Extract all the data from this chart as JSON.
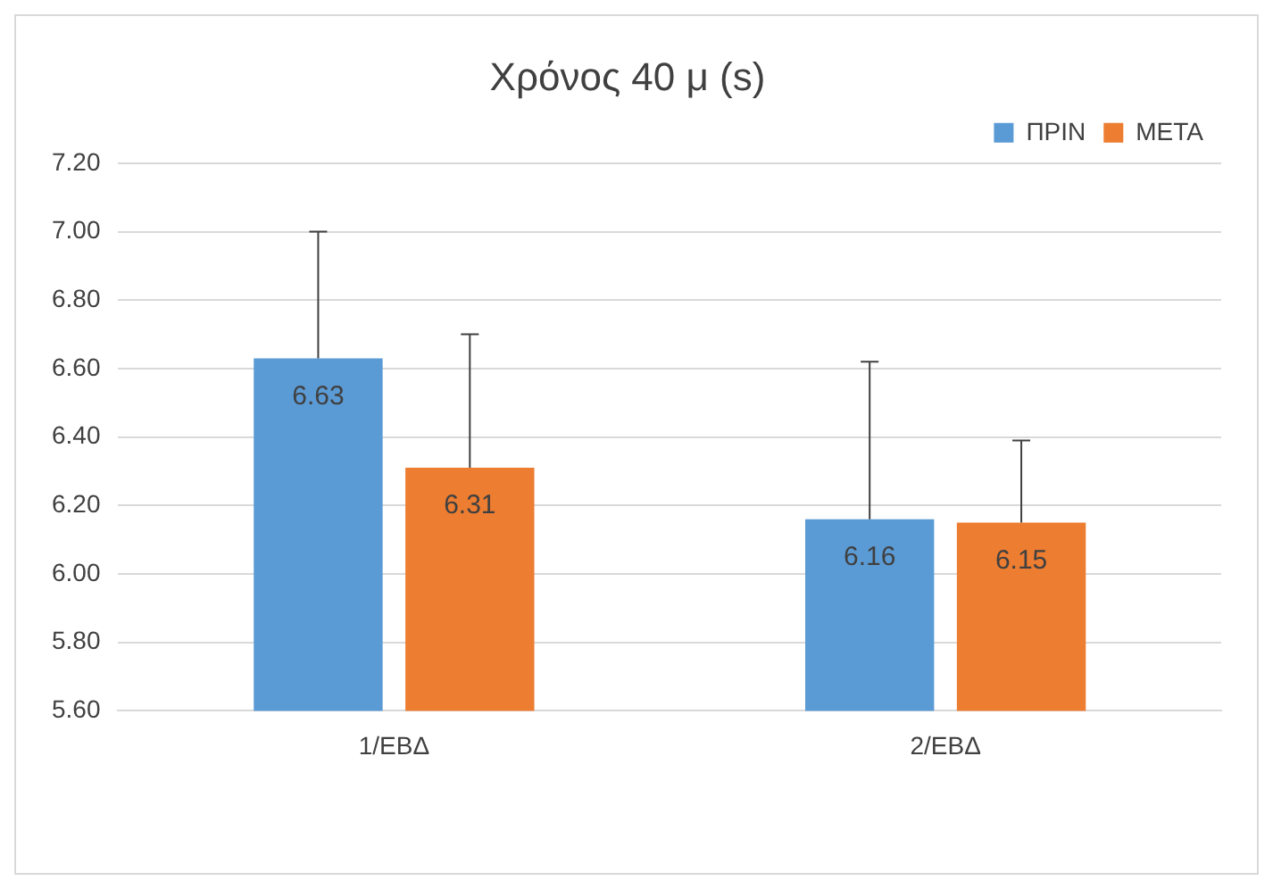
{
  "chart_data": {
    "type": "bar",
    "title": "Χρόνος 40 μ (s)",
    "categories": [
      "1/ΕΒΔ",
      "2/ΕΒΔ"
    ],
    "series": [
      {
        "name": "ΠΡΙΝ",
        "color": "#5b9bd5",
        "values": [
          6.63,
          6.16
        ],
        "errors": [
          [
            6.63,
            7.0
          ],
          [
            6.16,
            6.62
          ]
        ]
      },
      {
        "name": "ΜΕΤΑ",
        "color": "#ed7d31",
        "values": [
          6.31,
          6.15
        ],
        "errors": [
          [
            6.31,
            6.7
          ],
          [
            6.15,
            6.39
          ]
        ]
      }
    ],
    "ylim": [
      5.6,
      7.2
    ],
    "yticks": [
      {
        "value": 5.6,
        "label": "5.60"
      },
      {
        "value": 5.8,
        "label": "5.80"
      },
      {
        "value": 6.0,
        "label": "6.00"
      },
      {
        "value": 6.2,
        "label": "6.20"
      },
      {
        "value": 6.4,
        "label": "6.40"
      },
      {
        "value": 6.6,
        "label": "6.60"
      },
      {
        "value": 6.8,
        "label": "6.80"
      },
      {
        "value": 7.0,
        "label": "7.00"
      },
      {
        "value": 7.2,
        "label": "7.20"
      }
    ],
    "grid": "y",
    "legend": "top right",
    "data_labels": true
  }
}
